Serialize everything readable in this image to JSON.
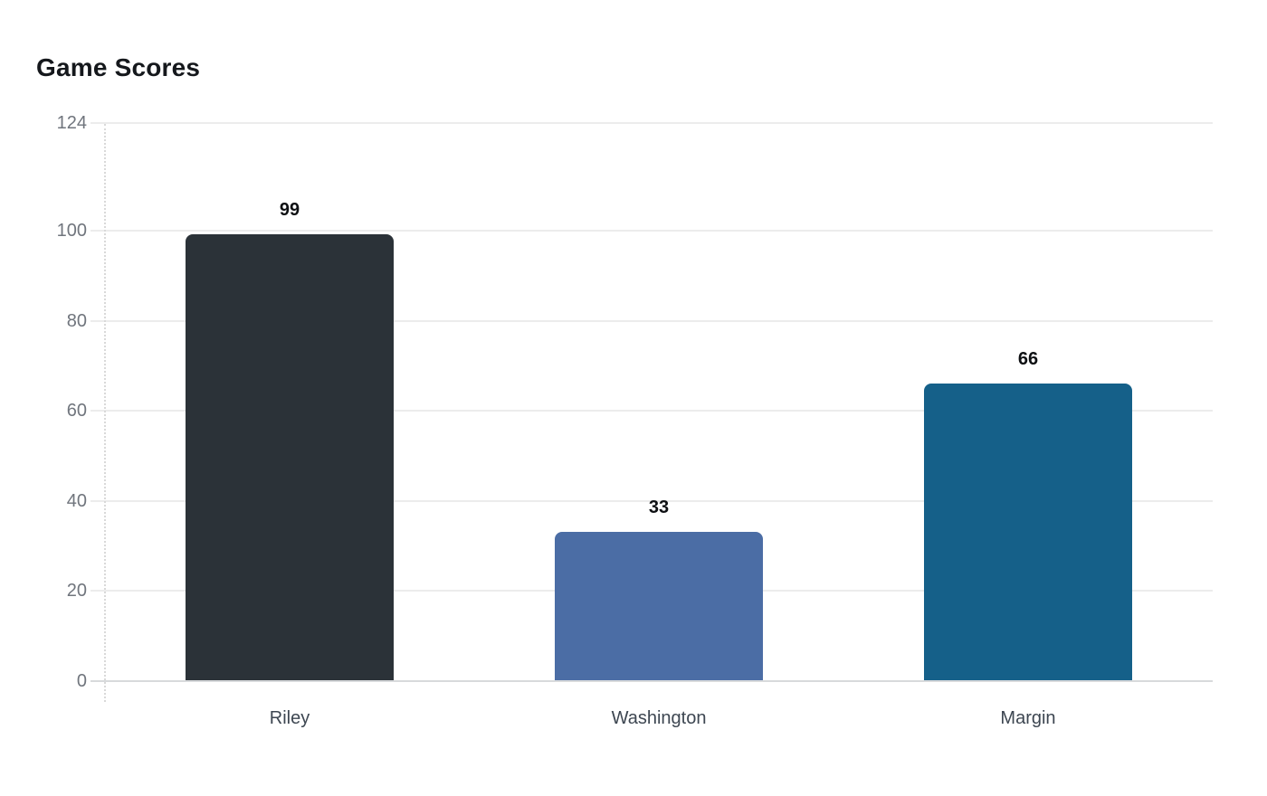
{
  "chart": {
    "title": "Game Scores"
  },
  "chart_data": {
    "type": "bar",
    "title": "Game Scores",
    "categories": [
      "Riley",
      "Washington",
      "Margin"
    ],
    "values": [
      99,
      33,
      66
    ],
    "value_labels": [
      "99",
      "33",
      "66"
    ],
    "bar_colors": [
      "#2b3238",
      "#4b6da5",
      "#156089"
    ],
    "xlabel": "",
    "ylabel": "",
    "ylim": [
      0,
      124
    ],
    "yticks": [
      0,
      20,
      40,
      60,
      80,
      100,
      124
    ],
    "grid": true,
    "legend": false,
    "colors": {
      "gridline": "#ececec",
      "axis_line": "#d8dadc",
      "dotted_axis": "#d9d9d9",
      "tick_label": "#70757d",
      "category_label": "#3d4651",
      "value_label": "#0e1013",
      "title": "#15181c",
      "background": "#ffffff"
    }
  }
}
